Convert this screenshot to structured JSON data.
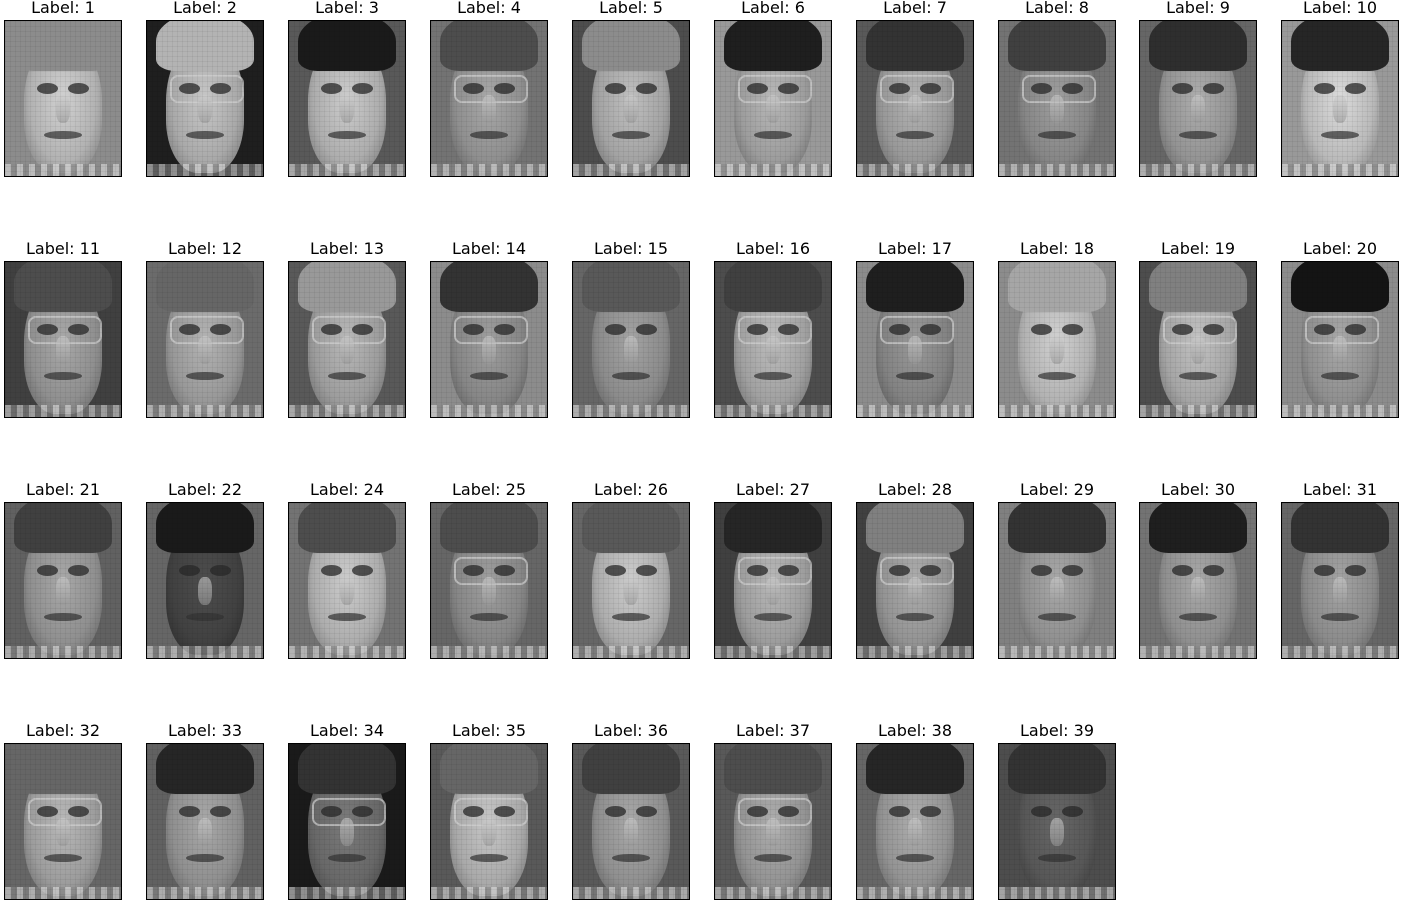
{
  "title_prefix": "Label: ",
  "faces": [
    {
      "label": "1",
      "tone": 0.82,
      "hair": 0.55,
      "bg": 0.55,
      "glasses": false
    },
    {
      "label": "2",
      "tone": 0.78,
      "hair": 0.7,
      "bg": 0.12,
      "glasses": true
    },
    {
      "label": "3",
      "tone": 0.8,
      "hair": 0.1,
      "bg": 0.35,
      "glasses": false
    },
    {
      "label": "4",
      "tone": 0.66,
      "hair": 0.3,
      "bg": 0.45,
      "glasses": true
    },
    {
      "label": "5",
      "tone": 0.75,
      "hair": 0.55,
      "bg": 0.3,
      "glasses": false
    },
    {
      "label": "6",
      "tone": 0.72,
      "hair": 0.12,
      "bg": 0.6,
      "glasses": true
    },
    {
      "label": "7",
      "tone": 0.7,
      "hair": 0.2,
      "bg": 0.35,
      "glasses": true
    },
    {
      "label": "8",
      "tone": 0.62,
      "hair": 0.25,
      "bg": 0.45,
      "glasses": true
    },
    {
      "label": "9",
      "tone": 0.68,
      "hair": 0.18,
      "bg": 0.4,
      "glasses": false
    },
    {
      "label": "10",
      "tone": 0.86,
      "hair": 0.15,
      "bg": 0.6,
      "glasses": false
    },
    {
      "label": "11",
      "tone": 0.66,
      "hair": 0.3,
      "bg": 0.25,
      "glasses": true
    },
    {
      "label": "12",
      "tone": 0.7,
      "hair": 0.4,
      "bg": 0.42,
      "glasses": true
    },
    {
      "label": "13",
      "tone": 0.72,
      "hair": 0.6,
      "bg": 0.35,
      "glasses": true
    },
    {
      "label": "14",
      "tone": 0.62,
      "hair": 0.2,
      "bg": 0.55,
      "glasses": true
    },
    {
      "label": "15",
      "tone": 0.64,
      "hair": 0.35,
      "bg": 0.4,
      "glasses": false
    },
    {
      "label": "16",
      "tone": 0.74,
      "hair": 0.25,
      "bg": 0.3,
      "glasses": true
    },
    {
      "label": "17",
      "tone": 0.6,
      "hair": 0.12,
      "bg": 0.55,
      "glasses": true
    },
    {
      "label": "18",
      "tone": 0.82,
      "hair": 0.65,
      "bg": 0.55,
      "glasses": false
    },
    {
      "label": "19",
      "tone": 0.76,
      "hair": 0.5,
      "bg": 0.3,
      "glasses": true
    },
    {
      "label": "20",
      "tone": 0.66,
      "hair": 0.08,
      "bg": 0.55,
      "glasses": true
    },
    {
      "label": "21",
      "tone": 0.66,
      "hair": 0.25,
      "bg": 0.38,
      "glasses": false
    },
    {
      "label": "22",
      "tone": 0.3,
      "hair": 0.1,
      "bg": 0.4,
      "glasses": false
    },
    {
      "label": "24",
      "tone": 0.8,
      "hair": 0.3,
      "bg": 0.45,
      "glasses": false
    },
    {
      "label": "25",
      "tone": 0.62,
      "hair": 0.3,
      "bg": 0.4,
      "glasses": true
    },
    {
      "label": "26",
      "tone": 0.8,
      "hair": 0.35,
      "bg": 0.4,
      "glasses": false
    },
    {
      "label": "27",
      "tone": 0.72,
      "hair": 0.15,
      "bg": 0.25,
      "glasses": true
    },
    {
      "label": "28",
      "tone": 0.68,
      "hair": 0.5,
      "bg": 0.25,
      "glasses": true
    },
    {
      "label": "29",
      "tone": 0.66,
      "hair": 0.2,
      "bg": 0.5,
      "glasses": false
    },
    {
      "label": "30",
      "tone": 0.66,
      "hair": 0.12,
      "bg": 0.45,
      "glasses": false
    },
    {
      "label": "31",
      "tone": 0.64,
      "hair": 0.2,
      "bg": 0.4,
      "glasses": false
    },
    {
      "label": "32",
      "tone": 0.72,
      "hair": 0.4,
      "bg": 0.4,
      "glasses": true
    },
    {
      "label": "33",
      "tone": 0.66,
      "hair": 0.15,
      "bg": 0.38,
      "glasses": false
    },
    {
      "label": "34",
      "tone": 0.48,
      "hair": 0.2,
      "bg": 0.1,
      "glasses": true
    },
    {
      "label": "35",
      "tone": 0.78,
      "hair": 0.4,
      "bg": 0.35,
      "glasses": true
    },
    {
      "label": "36",
      "tone": 0.66,
      "hair": 0.25,
      "bg": 0.35,
      "glasses": false
    },
    {
      "label": "37",
      "tone": 0.68,
      "hair": 0.3,
      "bg": 0.35,
      "glasses": true
    },
    {
      "label": "38",
      "tone": 0.68,
      "hair": 0.15,
      "bg": 0.4,
      "glasses": false
    },
    {
      "label": "39",
      "tone": 0.4,
      "hair": 0.2,
      "bg": 0.3,
      "glasses": false
    }
  ]
}
